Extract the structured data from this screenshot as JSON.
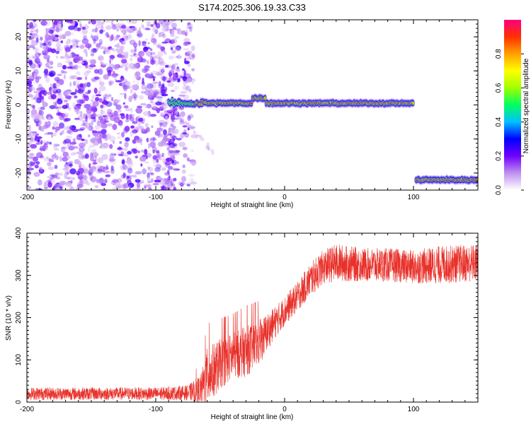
{
  "title": "S174.2025.306.19.33.C33",
  "chart_data": [
    {
      "type": "heatmap",
      "name": "spectrogram",
      "xlabel": "Height of straight line (km)",
      "ylabel": "Frequency (Hz)",
      "xlim": [
        -200,
        150
      ],
      "ylim": [
        -25,
        25
      ],
      "x_ticks": [
        -200,
        -100,
        0,
        100
      ],
      "x_tick_labels": [
        "-200",
        "-100",
        "0",
        "100"
      ],
      "y_ticks": [
        -20,
        -10,
        0,
        10,
        20
      ],
      "y_tick_labels": [
        "-20",
        "-10",
        "0",
        "10",
        "20"
      ],
      "noise_region_x": [
        -200,
        -70
      ],
      "tone_segments": [
        {
          "x_start": -90,
          "x_end": 100,
          "freq": 0.5
        },
        {
          "x_start": 102,
          "x_end": 150,
          "freq": -22
        }
      ],
      "colorbar": {
        "label": "Normalized spectral amplitude",
        "range": [
          0,
          1
        ],
        "ticks": [
          0.0,
          0.2,
          0.4,
          0.6,
          0.8
        ],
        "tick_labels": [
          "0.0",
          "0.2",
          "0.4",
          "0.6",
          "0.8"
        ],
        "colors": [
          "#ffffff",
          "#c090f0",
          "#7000ff",
          "#0000ff",
          "#00c0ff",
          "#00ff60",
          "#a0ff00",
          "#ffff00",
          "#ffa000",
          "#ff3000",
          "#ff0080"
        ]
      }
    },
    {
      "type": "line",
      "name": "snr",
      "xlabel": "Height of straight line (km)",
      "ylabel": "SNR (10 * v/v)",
      "xlim": [
        -200,
        150
      ],
      "ylim": [
        0,
        400
      ],
      "x_ticks": [
        -200,
        -100,
        0,
        100
      ],
      "x_tick_labels": [
        "-200",
        "-100",
        "0",
        "100"
      ],
      "y_ticks": [
        0,
        100,
        200,
        300,
        400
      ],
      "y_tick_labels": [
        "0",
        "100",
        "200",
        "300",
        "400"
      ],
      "series": [
        {
          "name": "SNR",
          "color": "#e8312a",
          "x": [
            -200,
            -150,
            -100,
            -75,
            -65,
            -60,
            -50,
            -40,
            -30,
            -20,
            -10,
            0,
            10,
            20,
            30,
            40,
            60,
            80,
            100,
            120,
            150
          ],
          "mean": [
            20,
            20,
            20,
            22,
            30,
            60,
            90,
            110,
            120,
            140,
            180,
            215,
            250,
            290,
            320,
            330,
            325,
            325,
            320,
            325,
            330
          ],
          "spread": [
            15,
            15,
            15,
            18,
            35,
            70,
            60,
            55,
            60,
            55,
            40,
            35,
            35,
            40,
            40,
            45,
            40,
            40,
            40,
            45,
            45
          ]
        }
      ]
    }
  ]
}
